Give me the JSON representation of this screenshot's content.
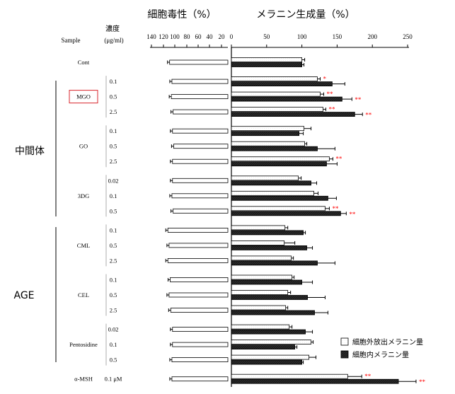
{
  "chart_data": {
    "type": "bar",
    "left_panel": {
      "title": "細胞毒性（%）",
      "ticks": [
        140,
        120,
        100,
        80,
        60,
        40,
        20
      ],
      "tick_labels": [
        "140",
        "120",
        "100",
        "80",
        "60",
        "40",
        "20"
      ],
      "xlim": [
        140,
        0
      ]
    },
    "right_panel": {
      "title": "メラニン生成量（%）",
      "ticks": [
        0,
        50,
        100,
        150,
        200,
        250
      ],
      "tick_labels": [
        "0",
        "50",
        "100",
        "150",
        "200",
        "250"
      ],
      "xlim": [
        0,
        250
      ]
    },
    "column_headers": {
      "sample": "Sample",
      "conc_top": "濃度",
      "conc_bottom": "(μg/ml)"
    },
    "category_labels": {
      "intermediate": "中間体",
      "age": "AGE"
    },
    "legend": {
      "extracellular": "細胞外放出メラニン量",
      "intracellular": "細胞内メラニン量"
    },
    "groups": [
      {
        "name": "Cont",
        "highlight": false,
        "rows": [
          {
            "conc": "",
            "cytotoxicity": 101,
            "extracellular": 100,
            "ext_err": 4,
            "intracellular": 100,
            "int_err": 3,
            "sig_ext": "",
            "sig_int": ""
          }
        ]
      },
      {
        "name": "MGO",
        "highlight": true,
        "rows": [
          {
            "conc": "0.1",
            "cytotoxicity": 97,
            "extracellular": 122,
            "ext_err": 4,
            "intracellular": 143,
            "int_err": 18,
            "sig_ext": "*",
            "sig_int": ""
          },
          {
            "conc": "0.5",
            "cytotoxicity": 98,
            "extracellular": 126,
            "ext_err": 5,
            "intracellular": 157,
            "int_err": 14,
            "sig_ext": "**",
            "sig_int": "**"
          },
          {
            "conc": "2.5",
            "cytotoxicity": 95,
            "extracellular": 130,
            "ext_err": 4,
            "intracellular": 175,
            "int_err": 11,
            "sig_ext": "**",
            "sig_int": "**"
          }
        ]
      },
      {
        "name": "GO",
        "highlight": false,
        "rows": [
          {
            "conc": "0.1",
            "cytotoxicity": 96,
            "extracellular": 103,
            "ext_err": 10,
            "intracellular": 96,
            "int_err": 6,
            "sig_ext": "",
            "sig_int": ""
          },
          {
            "conc": "0.5",
            "cytotoxicity": 94,
            "extracellular": 104,
            "ext_err": 3,
            "intracellular": 122,
            "int_err": 25,
            "sig_ext": "",
            "sig_int": ""
          },
          {
            "conc": "2.5",
            "cytotoxicity": 96,
            "extracellular": 139,
            "ext_err": 5,
            "intracellular": 135,
            "int_err": 15,
            "sig_ext": "**",
            "sig_int": ""
          }
        ]
      },
      {
        "name": "3DG",
        "highlight": false,
        "rows": [
          {
            "conc": "0.02",
            "cytotoxicity": 96,
            "extracellular": 95,
            "ext_err": 4,
            "intracellular": 113,
            "int_err": 8,
            "sig_ext": "",
            "sig_int": ""
          },
          {
            "conc": "0.1",
            "cytotoxicity": 97,
            "extracellular": 117,
            "ext_err": 6,
            "intracellular": 137,
            "int_err": 12,
            "sig_ext": "",
            "sig_int": ""
          },
          {
            "conc": "0.5",
            "cytotoxicity": 95,
            "extracellular": 133,
            "ext_err": 6,
            "intracellular": 155,
            "int_err": 8,
            "sig_ext": "**",
            "sig_int": "**"
          }
        ]
      },
      {
        "name": "CML",
        "highlight": false,
        "rows": [
          {
            "conc": "0.1",
            "cytotoxicity": 104,
            "extracellular": 76,
            "ext_err": 4,
            "intracellular": 102,
            "int_err": 3,
            "sig_ext": "",
            "sig_int": ""
          },
          {
            "conc": "0.5",
            "cytotoxicity": 102,
            "extracellular": 75,
            "ext_err": 15,
            "intracellular": 107,
            "int_err": 8,
            "sig_ext": "",
            "sig_int": ""
          },
          {
            "conc": "2.5",
            "cytotoxicity": 104,
            "extracellular": 85,
            "ext_err": 3,
            "intracellular": 122,
            "int_err": 25,
            "sig_ext": "",
            "sig_int": ""
          }
        ]
      },
      {
        "name": "CEL",
        "highlight": false,
        "rows": [
          {
            "conc": "0.1",
            "cytotoxicity": 100,
            "extracellular": 86,
            "ext_err": 3,
            "intracellular": 100,
            "int_err": 15,
            "sig_ext": "",
            "sig_int": ""
          },
          {
            "conc": "0.5",
            "cytotoxicity": 102,
            "extracellular": 80,
            "ext_err": 4,
            "intracellular": 108,
            "int_err": 25,
            "sig_ext": "",
            "sig_int": ""
          },
          {
            "conc": "2.5",
            "cytotoxicity": 99,
            "extracellular": 77,
            "ext_err": 3,
            "intracellular": 118,
            "int_err": 19,
            "sig_ext": "",
            "sig_int": ""
          }
        ]
      },
      {
        "name": "Pentosidine",
        "highlight": false,
        "rows": [
          {
            "conc": "0.02",
            "cytotoxicity": 96,
            "extracellular": 82,
            "ext_err": 4,
            "intracellular": 105,
            "int_err": 10,
            "sig_ext": "",
            "sig_int": ""
          },
          {
            "conc": "0.1",
            "cytotoxicity": 96,
            "extracellular": 113,
            "ext_err": 3,
            "intracellular": 90,
            "int_err": 3,
            "sig_ext": "",
            "sig_int": ""
          },
          {
            "conc": "0.5",
            "cytotoxicity": 97,
            "extracellular": 110,
            "ext_err": 10,
            "intracellular": 100,
            "int_err": 2,
            "sig_ext": "",
            "sig_int": ""
          }
        ]
      },
      {
        "name": "α-MSH",
        "highlight": false,
        "rows": [
          {
            "conc": "0.1 μM",
            "cytotoxicity": 97,
            "extracellular": 165,
            "ext_err": 20,
            "intracellular": 237,
            "int_err": 25,
            "sig_ext": "**",
            "sig_int": "**"
          }
        ]
      }
    ]
  },
  "colors": {
    "bar_outline": "#000000",
    "dark_fill": "#262626",
    "light_fill": "#ffffff",
    "significance": "#ff0000",
    "highlight_box": "#d9262c"
  }
}
